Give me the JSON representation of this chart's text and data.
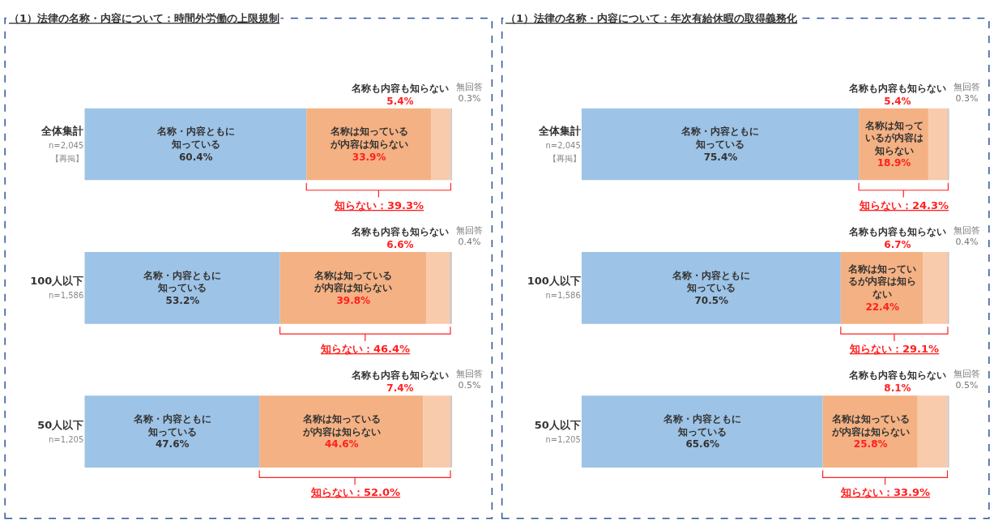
{
  "chart_data": [
    {
      "type": "bar",
      "orientation": "horizontal",
      "stacked": true,
      "title": "（1）法律の名称・内容について：時間外労働の上限規制",
      "categories": [
        "全体集計\nn=2,045\n【再掲】",
        "100人以下\nn=1,586",
        "50人以下\nn=1,205"
      ],
      "series": [
        {
          "name": "名称・内容ともに知っている",
          "color": "#9dc3e6",
          "values": [
            60.4,
            53.2,
            47.6
          ],
          "value_labels": [
            "60.4%",
            "53.2%",
            "47.6%"
          ]
        },
        {
          "name": "名称は知っているが内容は知らない",
          "color": "#f4b183",
          "values": [
            33.9,
            39.8,
            44.6
          ],
          "value_labels": [
            "33.9%",
            "39.8%",
            "44.6%"
          ]
        },
        {
          "name": "名称も内容も知らない",
          "color": "#f8cbad",
          "values": [
            5.4,
            6.6,
            7.4
          ],
          "value_labels": [
            "5.4%",
            "6.6%",
            "7.4%"
          ]
        },
        {
          "name": "無回答",
          "color": "#c9c9c9",
          "values": [
            0.3,
            0.4,
            0.5
          ],
          "value_labels": [
            "0.3%",
            "0.4%",
            "0.5%"
          ]
        }
      ],
      "annotations": [
        "知らない：39.3%",
        "知らない：46.4%",
        "知らない：52.0%"
      ]
    },
    {
      "type": "bar",
      "orientation": "horizontal",
      "stacked": true,
      "title": "（1）法律の名称・内容について：年次有給休暇の取得義務化",
      "categories": [
        "全体集計\nn=2,045\n【再掲】",
        "100人以下\nn=1,586",
        "50人以下\nn=1,205"
      ],
      "series": [
        {
          "name": "名称・内容ともに知っている",
          "color": "#9dc3e6",
          "values": [
            75.4,
            70.5,
            65.6
          ],
          "value_labels": [
            "75.4%",
            "70.5%",
            "65.6%"
          ]
        },
        {
          "name": "名称は知っているが内容は知らない",
          "color": "#f4b183",
          "values": [
            18.9,
            22.4,
            25.8
          ],
          "value_labels": [
            "18.9%",
            "22.4%",
            "25.8%"
          ]
        },
        {
          "name": "名称も内容も知らない",
          "color": "#f8cbad",
          "values": [
            5.4,
            6.7,
            8.1
          ],
          "value_labels": [
            "5.4%",
            "6.7%",
            "8.1%"
          ]
        },
        {
          "name": "無回答",
          "color": "#c9c9c9",
          "values": [
            0.3,
            0.4,
            0.5
          ],
          "value_labels": [
            "0.3%",
            "0.4%",
            "0.5%"
          ]
        }
      ],
      "annotations": [
        "知らない：24.3%",
        "知らない：29.1%",
        "知らない：33.9%"
      ]
    }
  ]
}
